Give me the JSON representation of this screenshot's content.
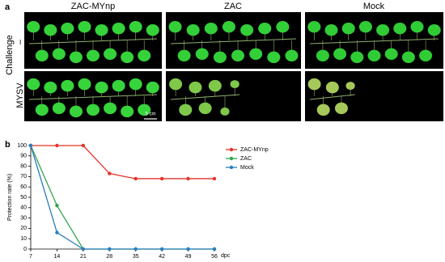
{
  "panel_a": {
    "label": "a",
    "columns": [
      "ZAC-MYnp",
      "ZAC",
      "Mock"
    ],
    "row_group": "Challenge",
    "rows": [
      "–",
      "MYSV"
    ],
    "scale_bar": "5 cm"
  },
  "chart_data": {
    "type": "line",
    "panel_label": "b",
    "y_label": "Protection rate (%)",
    "x_label": "dpc",
    "x": [
      7,
      14,
      21,
      28,
      35,
      42,
      49,
      56
    ],
    "xlim": [
      7,
      56
    ],
    "xticks": [
      7,
      14,
      21,
      28,
      35,
      42,
      49,
      56
    ],
    "ylim": [
      0,
      100
    ],
    "yticks": [
      0,
      10,
      20,
      30,
      40,
      50,
      60,
      70,
      80,
      90,
      100
    ],
    "grid": false,
    "legend": "right",
    "series": [
      {
        "name": "ZAC-MYnp",
        "color": "#e53228",
        "values": [
          100,
          100,
          100,
          73,
          68,
          68,
          68,
          68
        ]
      },
      {
        "name": "ZAC",
        "color": "#2fa54c",
        "values": [
          100,
          42,
          0,
          0,
          0,
          0,
          0,
          0
        ]
      },
      {
        "name": "Mock",
        "color": "#2a7dbf",
        "values": [
          100,
          16,
          0,
          0,
          0,
          0,
          0,
          0
        ]
      }
    ]
  }
}
